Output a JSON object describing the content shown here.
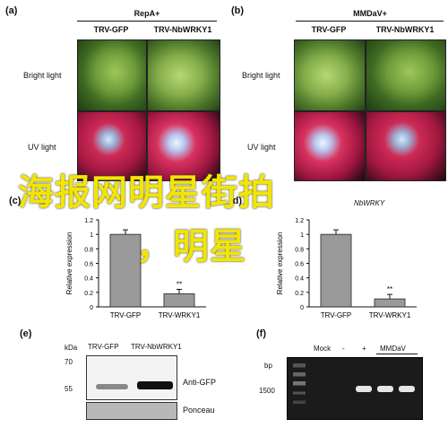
{
  "panels": {
    "a": {
      "label": "(a)",
      "title": "RepA+",
      "col1": "TRV-GFP",
      "col2": "TRV-NbWRKY1",
      "row1": "Bright light",
      "row2": "UV light"
    },
    "b": {
      "label": "(b)",
      "title": "MMDaV+",
      "col1": "TRV-GFP",
      "col2": "TRV-NbWRKY1",
      "row1": "Bright light",
      "row2": "UV light"
    },
    "c": {
      "label": "(c)",
      "sig": "**"
    },
    "d": {
      "label": "(d)",
      "title": "NbWRKY",
      "sig": "**"
    },
    "e": {
      "label": "(e)",
      "kda": "kDa",
      "col1": "TRV-GFP",
      "col2": "TRV-NbWRKY1",
      "marker70": "70",
      "marker55": "55",
      "row1": "Anti-GFP",
      "row2": "Ponceau"
    },
    "f": {
      "label": "(f)",
      "bp": "bp",
      "mock": "Mock",
      "minus": "-",
      "plus": "+",
      "mmdav": "MMDaV",
      "ladder": "1500"
    }
  },
  "overlay_text": {
    "line1": "海报网明星街拍",
    "line2": "，明星"
  },
  "chart_data": [
    {
      "type": "bar",
      "categories": [
        "TRV-GFP",
        "TRV-WRKY1"
      ],
      "values": [
        1.0,
        0.18
      ],
      "ylabel": "Relative expression",
      "ylim": [
        0,
        1.2
      ],
      "yticks": [
        "0",
        "0.2",
        "0.4",
        "0.6",
        "0.8",
        "1",
        "1.2"
      ]
    },
    {
      "type": "bar",
      "categories": [
        "TRV-GFP",
        "TRV-WRKY1"
      ],
      "values": [
        1.0,
        0.11
      ],
      "ylabel": "Relative expression",
      "ylim": [
        0,
        1.2
      ],
      "yticks": [
        "0",
        "0.2",
        "0.4",
        "0.6",
        "0.8",
        "1",
        "1.2"
      ]
    }
  ]
}
